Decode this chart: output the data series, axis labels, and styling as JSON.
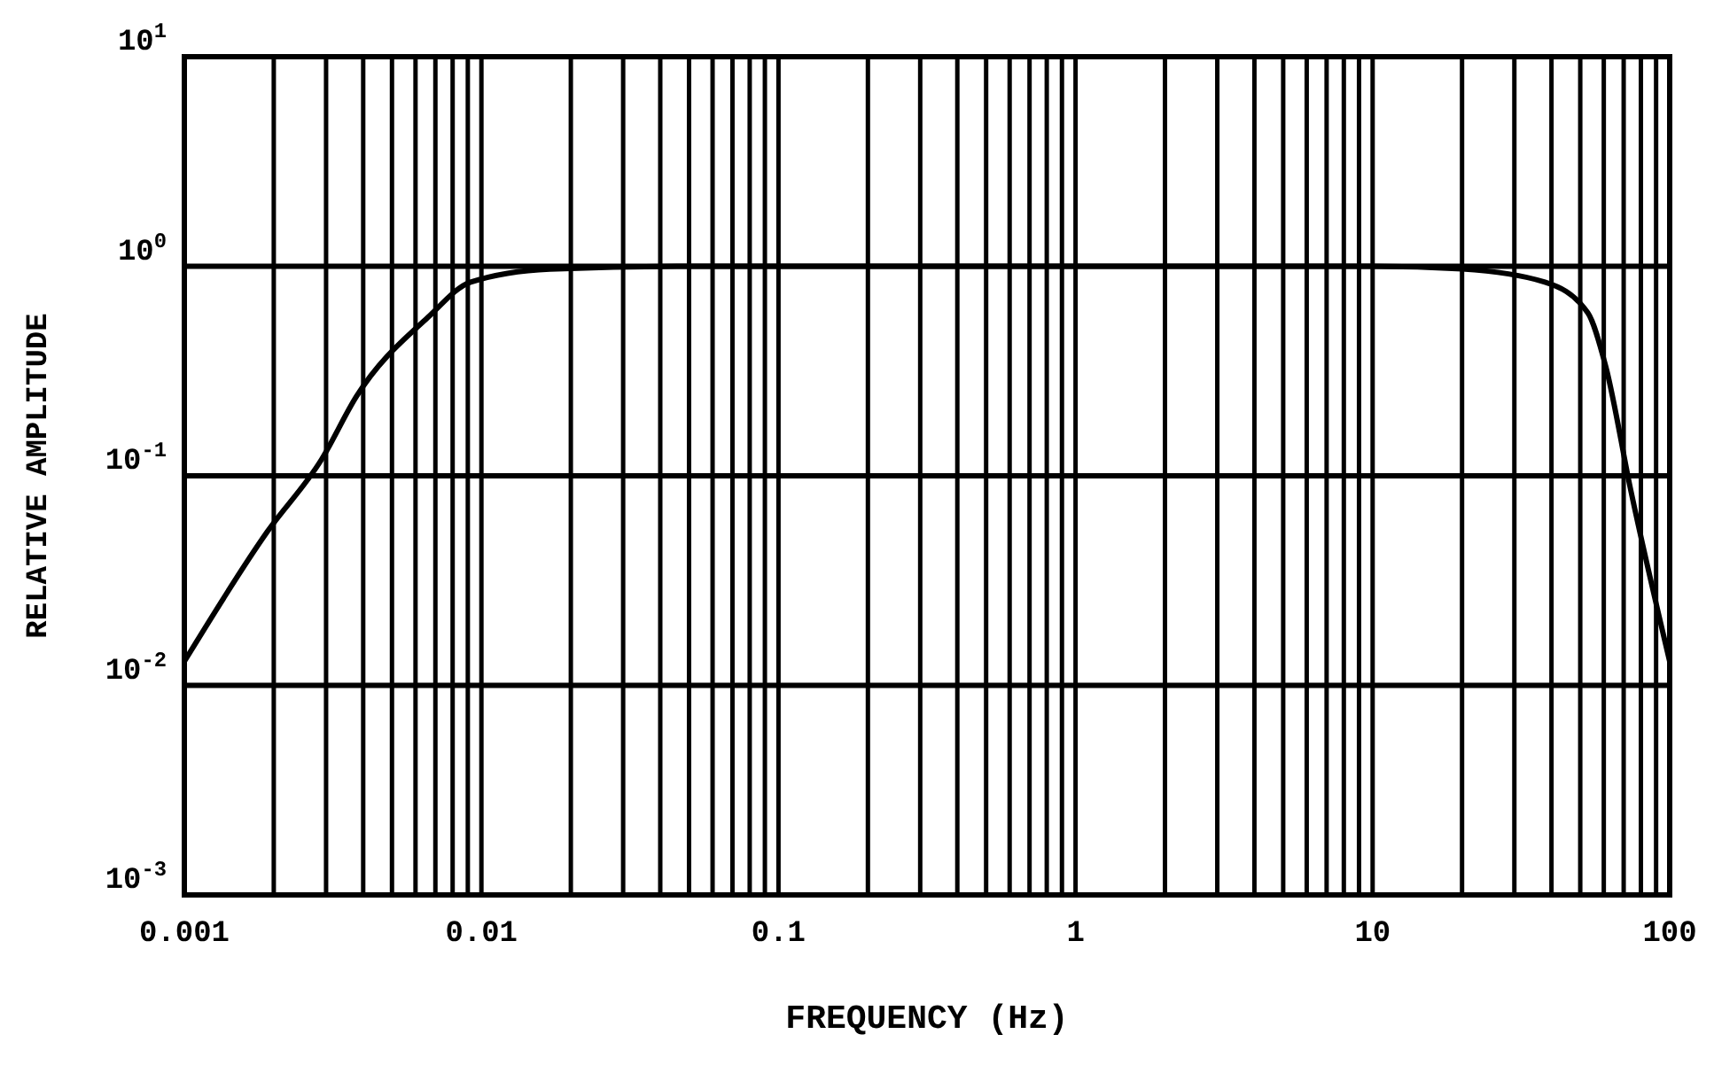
{
  "chart_data": {
    "type": "line",
    "xlabel": "FREQUENCY (Hz)",
    "ylabel": "RELATIVE AMPLITUDE",
    "log": "xy",
    "grid": true,
    "line_style": "solid",
    "marker": "none",
    "xlim": [
      0.001,
      100
    ],
    "ylim": [
      0.001,
      10
    ],
    "xticks": [
      0.001,
      {
        "value": 0.002,
        "label": null
      },
      {
        "value": 0.003,
        "label": null
      },
      {
        "value": 0.004,
        "label": null
      },
      {
        "value": 0.005,
        "label": null
      },
      {
        "value": 0.006,
        "label": null
      },
      {
        "value": 0.007,
        "label": null
      },
      {
        "value": 0.008,
        "label": null
      },
      {
        "value": 0.009,
        "label": null
      },
      0.01,
      {
        "value": 0.02,
        "label": null
      },
      {
        "value": 0.03,
        "label": null
      },
      {
        "value": 0.04,
        "label": null
      },
      {
        "value": 0.05,
        "label": null
      },
      {
        "value": 0.06,
        "label": null
      },
      {
        "value": 0.07,
        "label": null
      },
      {
        "value": 0.08,
        "label": null
      },
      {
        "value": 0.09,
        "label": null
      },
      0.1,
      {
        "value": 0.2,
        "label": null
      },
      {
        "value": 0.3,
        "label": null
      },
      {
        "value": 0.4,
        "label": null
      },
      {
        "value": 0.5,
        "label": null
      },
      {
        "value": 0.6,
        "label": null
      },
      {
        "value": 0.7,
        "label": null
      },
      {
        "value": 0.8,
        "label": null
      },
      {
        "value": 0.9,
        "label": null
      },
      1,
      {
        "value": 2,
        "label": null
      },
      {
        "value": 3,
        "label": null
      },
      {
        "value": 4,
        "label": null
      },
      {
        "value": 5,
        "label": null
      },
      {
        "value": 6,
        "label": null
      },
      {
        "value": 7,
        "label": null
      },
      {
        "value": 8,
        "label": null
      },
      {
        "value": 9,
        "label": null
      },
      10,
      {
        "value": 20,
        "label": null
      },
      {
        "value": 30,
        "label": null
      },
      {
        "value": 40,
        "label": null
      },
      {
        "value": 50,
        "label": null
      },
      {
        "value": 60,
        "label": null
      },
      {
        "value": 70,
        "label": null
      },
      {
        "value": 80,
        "label": null
      },
      {
        "value": 90,
        "label": null
      },
      100
    ],
    "yticks": [
      {
        "value": 0.001,
        "label": "10$^{-3}$"
      },
      {
        "value": 0.01,
        "label": "10$^{-2}$"
      },
      {
        "value": 0.1,
        "label": "10$^{-1}$"
      },
      {
        "value": 1,
        "label": "10$^{0}$"
      },
      {
        "value": 10,
        "label": "10$^{1}$"
      }
    ],
    "series": [
      {
        "color": "#000000",
        "x": [
          0.001,
          0.0019,
          0.0029,
          0.0038,
          0.0066,
          0.0092,
          0.017,
          0.05,
          1,
          10,
          20,
          38,
          53,
          61,
          74,
          100
        ],
        "values": [
          0.013,
          0.054,
          0.12,
          0.24,
          0.57,
          0.84,
          0.97,
          1,
          1,
          1,
          0.97,
          0.84,
          0.6,
          0.33,
          0.085,
          0.013
        ]
      }
    ]
  }
}
